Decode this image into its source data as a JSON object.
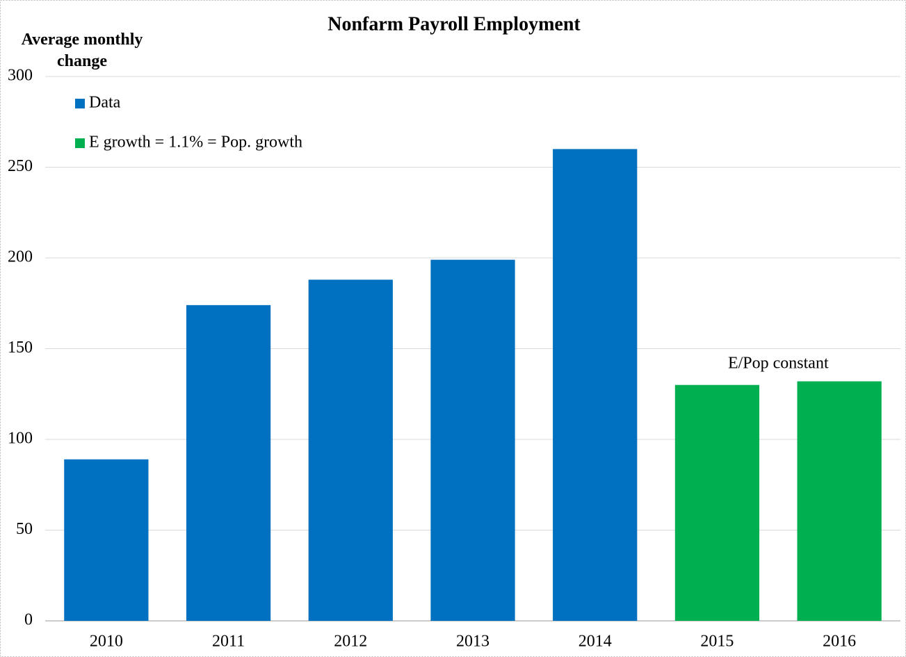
{
  "chart_data": {
    "type": "bar",
    "title": "Nonfarm Payroll Employment",
    "ylabel": "Average monthly change",
    "categories": [
      "2010",
      "2011",
      "2012",
      "2013",
      "2014",
      "2015",
      "2016"
    ],
    "series": [
      {
        "name": "Data",
        "color": "#0070c0",
        "values": [
          89,
          174,
          188,
          199,
          260,
          null,
          null
        ]
      },
      {
        "name": "E growth = 1.1% = Pop. growth",
        "color": "#00b050",
        "values": [
          null,
          null,
          null,
          null,
          null,
          130,
          132
        ]
      }
    ],
    "annotation": "E/Pop constant",
    "ylim": [
      0,
      300
    ],
    "yticks": [
      0,
      50,
      100,
      150,
      200,
      250,
      300
    ],
    "grid": true,
    "legend": "upper left"
  }
}
